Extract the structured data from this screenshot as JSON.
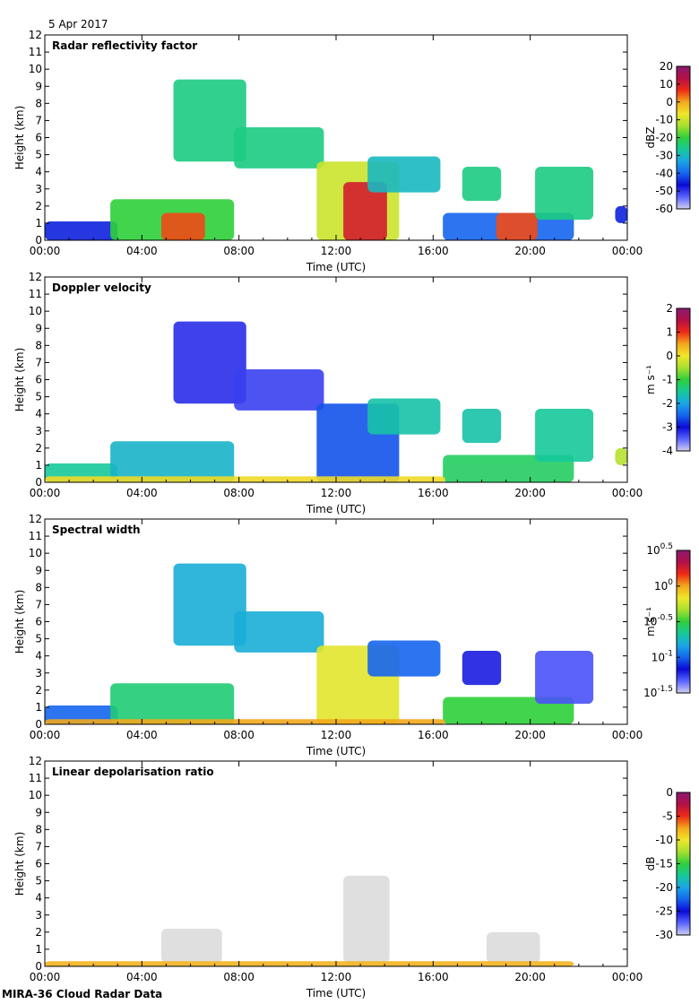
{
  "header": {
    "date": "5 Apr 2017"
  },
  "footer": {
    "credit": "MIRA-36 Cloud Radar Data"
  },
  "colors": {
    "colormap": [
      "#cfcfee",
      "#5a64ff",
      "#0a0ad8",
      "#1565ee",
      "#1aa6e6",
      "#16c99a",
      "#2fcf3a",
      "#a6e02e",
      "#f0e62a",
      "#f2a81c",
      "#ef2a14",
      "#b41046",
      "#8a1a70"
    ],
    "ldr_echo": "#dcdcdc"
  },
  "chart_data": [
    {
      "type": "heatmap",
      "title": "Radar reflectivity factor",
      "xlabel": "Time (UTC)",
      "ylabel": "Height (km)",
      "x_ticks": [
        "00:00",
        "04:00",
        "08:00",
        "12:00",
        "16:00",
        "20:00",
        "00:00"
      ],
      "xlim_hours": [
        0,
        24
      ],
      "ylim_km": [
        0,
        12
      ],
      "y_ticks": [
        0,
        1,
        2,
        3,
        4,
        5,
        6,
        7,
        8,
        9,
        10,
        11,
        12
      ],
      "colorbar": {
        "unit": "dBZ",
        "min": -60,
        "max": 20,
        "ticks": [
          {
            "value": 20,
            "label": "20"
          },
          {
            "value": 10,
            "label": "10"
          },
          {
            "value": 0,
            "label": "0"
          },
          {
            "value": -10,
            "label": "-10"
          },
          {
            "value": -20,
            "label": "-20"
          },
          {
            "value": -30,
            "label": "-30"
          },
          {
            "value": -40,
            "label": "-40"
          },
          {
            "value": -50,
            "label": "-50"
          },
          {
            "value": -60,
            "label": "-60"
          }
        ]
      },
      "echoes": [
        {
          "t0": 0.0,
          "t1": 3.0,
          "h0": 0.0,
          "h1": 1.1,
          "value": -45
        },
        {
          "t0": 2.7,
          "t1": 7.8,
          "h0": 0.0,
          "h1": 2.4,
          "value": -20
        },
        {
          "t0": 4.8,
          "t1": 6.6,
          "h0": 0.0,
          "h1": 1.6,
          "value": 5
        },
        {
          "t0": 5.3,
          "t1": 8.3,
          "h0": 4.6,
          "h1": 9.4,
          "value": -25
        },
        {
          "t0": 7.8,
          "t1": 11.5,
          "h0": 4.2,
          "h1": 6.6,
          "value": -25
        },
        {
          "t0": 11.2,
          "t1": 14.6,
          "h0": 0.0,
          "h1": 4.6,
          "value": -10
        },
        {
          "t0": 12.3,
          "t1": 14.1,
          "h0": 0.0,
          "h1": 3.4,
          "value": 10
        },
        {
          "t0": 13.3,
          "t1": 16.3,
          "h0": 2.8,
          "h1": 4.9,
          "value": -30
        },
        {
          "t0": 16.4,
          "t1": 21.8,
          "h0": 0.0,
          "h1": 1.6,
          "value": -40
        },
        {
          "t0": 17.2,
          "t1": 18.8,
          "h0": 2.3,
          "h1": 4.3,
          "value": -25
        },
        {
          "t0": 18.6,
          "t1": 20.3,
          "h0": 0.0,
          "h1": 1.6,
          "value": 5
        },
        {
          "t0": 20.2,
          "t1": 22.6,
          "h0": 1.2,
          "h1": 4.3,
          "value": -25
        },
        {
          "t0": 23.5,
          "t1": 24.0,
          "h0": 1.0,
          "h1": 2.0,
          "value": -45
        }
      ]
    },
    {
      "type": "heatmap",
      "title": "Doppler velocity",
      "xlabel": "Time (UTC)",
      "ylabel": "Height (km)",
      "x_ticks": [
        "00:00",
        "04:00",
        "08:00",
        "12:00",
        "16:00",
        "20:00",
        "00:00"
      ],
      "xlim_hours": [
        0,
        24
      ],
      "ylim_km": [
        0,
        12
      ],
      "y_ticks": [
        0,
        1,
        2,
        3,
        4,
        5,
        6,
        7,
        8,
        9,
        10,
        11,
        12
      ],
      "colorbar": {
        "unit": "m s⁻¹",
        "min": -4,
        "max": 2,
        "ticks": [
          {
            "value": 2,
            "label": "2"
          },
          {
            "value": 1,
            "label": "1"
          },
          {
            "value": 0,
            "label": "0"
          },
          {
            "value": -1,
            "label": "-1"
          },
          {
            "value": -2,
            "label": "-2"
          },
          {
            "value": -3,
            "label": "-3"
          },
          {
            "value": -4,
            "label": "-4"
          }
        ]
      },
      "echoes": [
        {
          "t0": 0.0,
          "t1": 3.0,
          "h0": 0.0,
          "h1": 1.1,
          "value": -1.5
        },
        {
          "t0": 2.7,
          "t1": 7.8,
          "h0": 0.0,
          "h1": 2.4,
          "value": -1.8
        },
        {
          "t0": 5.3,
          "t1": 8.3,
          "h0": 4.6,
          "h1": 9.4,
          "value": -3.2
        },
        {
          "t0": 7.8,
          "t1": 11.5,
          "h0": 4.2,
          "h1": 6.6,
          "value": -3.3
        },
        {
          "t0": 11.2,
          "t1": 14.6,
          "h0": 0.0,
          "h1": 4.6,
          "value": -2.6
        },
        {
          "t0": 13.3,
          "t1": 16.3,
          "h0": 2.8,
          "h1": 4.9,
          "value": -1.6
        },
        {
          "t0": 16.4,
          "t1": 21.8,
          "h0": 0.0,
          "h1": 1.6,
          "value": -1.2
        },
        {
          "t0": 17.2,
          "t1": 18.8,
          "h0": 2.3,
          "h1": 4.3,
          "value": -1.6
        },
        {
          "t0": 20.2,
          "t1": 22.6,
          "h0": 1.2,
          "h1": 4.3,
          "value": -1.5
        },
        {
          "t0": 0.0,
          "t1": 16.5,
          "h0": 0.0,
          "h1": 0.35,
          "value": 0.1
        },
        {
          "t0": 23.5,
          "t1": 24.0,
          "h0": 1.0,
          "h1": 2.0,
          "value": -0.4
        }
      ]
    },
    {
      "type": "heatmap",
      "title": "Spectral width",
      "xlabel": "Time (UTC)",
      "ylabel": "Height (km)",
      "x_ticks": [
        "00:00",
        "04:00",
        "08:00",
        "12:00",
        "16:00",
        "20:00",
        "00:00"
      ],
      "xlim_hours": [
        0,
        24
      ],
      "ylim_km": [
        0,
        12
      ],
      "y_ticks": [
        0,
        1,
        2,
        3,
        4,
        5,
        6,
        7,
        8,
        9,
        10,
        11,
        12
      ],
      "colorbar": {
        "unit": "m s⁻¹",
        "min": -1.5,
        "max": 0.5,
        "scale": "log10",
        "ticks": [
          {
            "value": 0.5,
            "label": "10",
            "exp": "0.5"
          },
          {
            "value": 0,
            "label": "10",
            "exp": "0"
          },
          {
            "value": -0.5,
            "label": "10",
            "exp": "-0.5"
          },
          {
            "value": -1,
            "label": "10",
            "exp": "-1"
          },
          {
            "value": -1.5,
            "label": "10",
            "exp": "-1.5"
          }
        ]
      },
      "echoes": [
        {
          "t0": 0.0,
          "t1": 3.0,
          "h0": 0.0,
          "h1": 1.1,
          "value": -1.0
        },
        {
          "t0": 2.7,
          "t1": 7.8,
          "h0": 0.0,
          "h1": 2.4,
          "value": -0.6
        },
        {
          "t0": 5.3,
          "t1": 8.3,
          "h0": 4.6,
          "h1": 9.4,
          "value": -0.8
        },
        {
          "t0": 7.8,
          "t1": 11.5,
          "h0": 4.2,
          "h1": 6.6,
          "value": -0.8
        },
        {
          "t0": 11.2,
          "t1": 14.6,
          "h0": 0.0,
          "h1": 4.6,
          "value": -0.2
        },
        {
          "t0": 13.3,
          "t1": 16.3,
          "h0": 2.8,
          "h1": 4.9,
          "value": -1.0
        },
        {
          "t0": 16.4,
          "t1": 21.8,
          "h0": 0.0,
          "h1": 1.6,
          "value": -0.5
        },
        {
          "t0": 17.2,
          "t1": 18.8,
          "h0": 2.3,
          "h1": 4.3,
          "value": -1.2
        },
        {
          "t0": 20.2,
          "t1": 22.6,
          "h0": 1.2,
          "h1": 4.3,
          "value": -1.3
        },
        {
          "t0": 0.0,
          "t1": 16.5,
          "h0": 0.0,
          "h1": 0.3,
          "value": 0.0
        }
      ]
    },
    {
      "type": "heatmap",
      "title": "Linear depolarisation ratio",
      "xlabel": "Time (UTC)",
      "ylabel": "Height (km)",
      "x_ticks": [
        "00:00",
        "04:00",
        "08:00",
        "12:00",
        "16:00",
        "20:00",
        "00:00"
      ],
      "xlim_hours": [
        0,
        24
      ],
      "ylim_km": [
        0,
        12
      ],
      "y_ticks": [
        0,
        1,
        2,
        3,
        4,
        5,
        6,
        7,
        8,
        9,
        10,
        11,
        12
      ],
      "colorbar": {
        "unit": "dB",
        "min": -30,
        "max": 0,
        "ticks": [
          {
            "value": 0,
            "label": "0"
          },
          {
            "value": -5,
            "label": "-5"
          },
          {
            "value": -10,
            "label": "-10"
          },
          {
            "value": -15,
            "label": "-15"
          },
          {
            "value": -20,
            "label": "-20"
          },
          {
            "value": -25,
            "label": "-25"
          },
          {
            "value": -30,
            "label": "-30"
          }
        ]
      },
      "echoes": [
        {
          "t0": 4.8,
          "t1": 7.3,
          "h0": 0.2,
          "h1": 2.2,
          "value": null
        },
        {
          "t0": 12.3,
          "t1": 14.2,
          "h0": 0.2,
          "h1": 5.3,
          "value": null
        },
        {
          "t0": 18.2,
          "t1": 20.4,
          "h0": 0.2,
          "h1": 2.0,
          "value": null
        },
        {
          "t0": 0.0,
          "t1": 21.8,
          "h0": 0.0,
          "h1": 0.3,
          "value": -8
        }
      ]
    }
  ]
}
